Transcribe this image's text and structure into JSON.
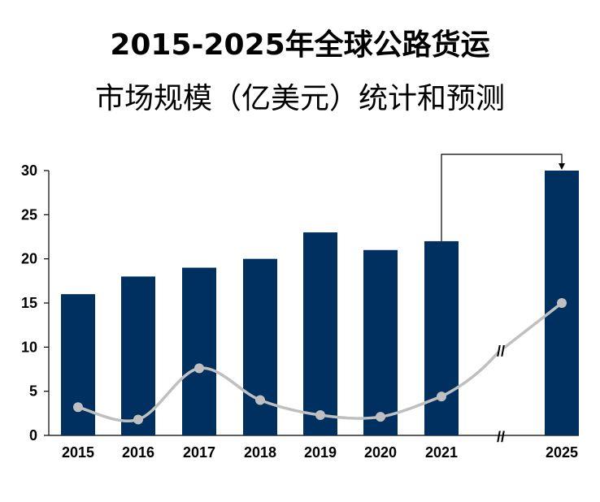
{
  "title_line1": "2015-2025年全球公路货运",
  "title_line2": "市场规模（亿美元）统计和预测",
  "chart_data": {
    "type": "bar",
    "title": "2015-2025年全球公路货运市场规模（亿美元）统计和预测",
    "categories": [
      "2015",
      "2016",
      "2017",
      "2018",
      "2019",
      "2020",
      "2021",
      "2025"
    ],
    "values": [
      16,
      18,
      19,
      20,
      23,
      21,
      22,
      30
    ],
    "growth_line": [
      3.2,
      1.8,
      7.6,
      4.0,
      2.3,
      2.1,
      4.4,
      15.0
    ],
    "yticks": [
      0,
      5,
      10,
      15,
      20,
      25,
      30
    ],
    "ylim": [
      0,
      30
    ],
    "xlabel": "",
    "ylabel": "",
    "axis_break_label": "//",
    "colors": {
      "bar": "#003060",
      "line": "#bfbfbf",
      "marker": "#bfbfbf",
      "axis": "#000000"
    }
  }
}
